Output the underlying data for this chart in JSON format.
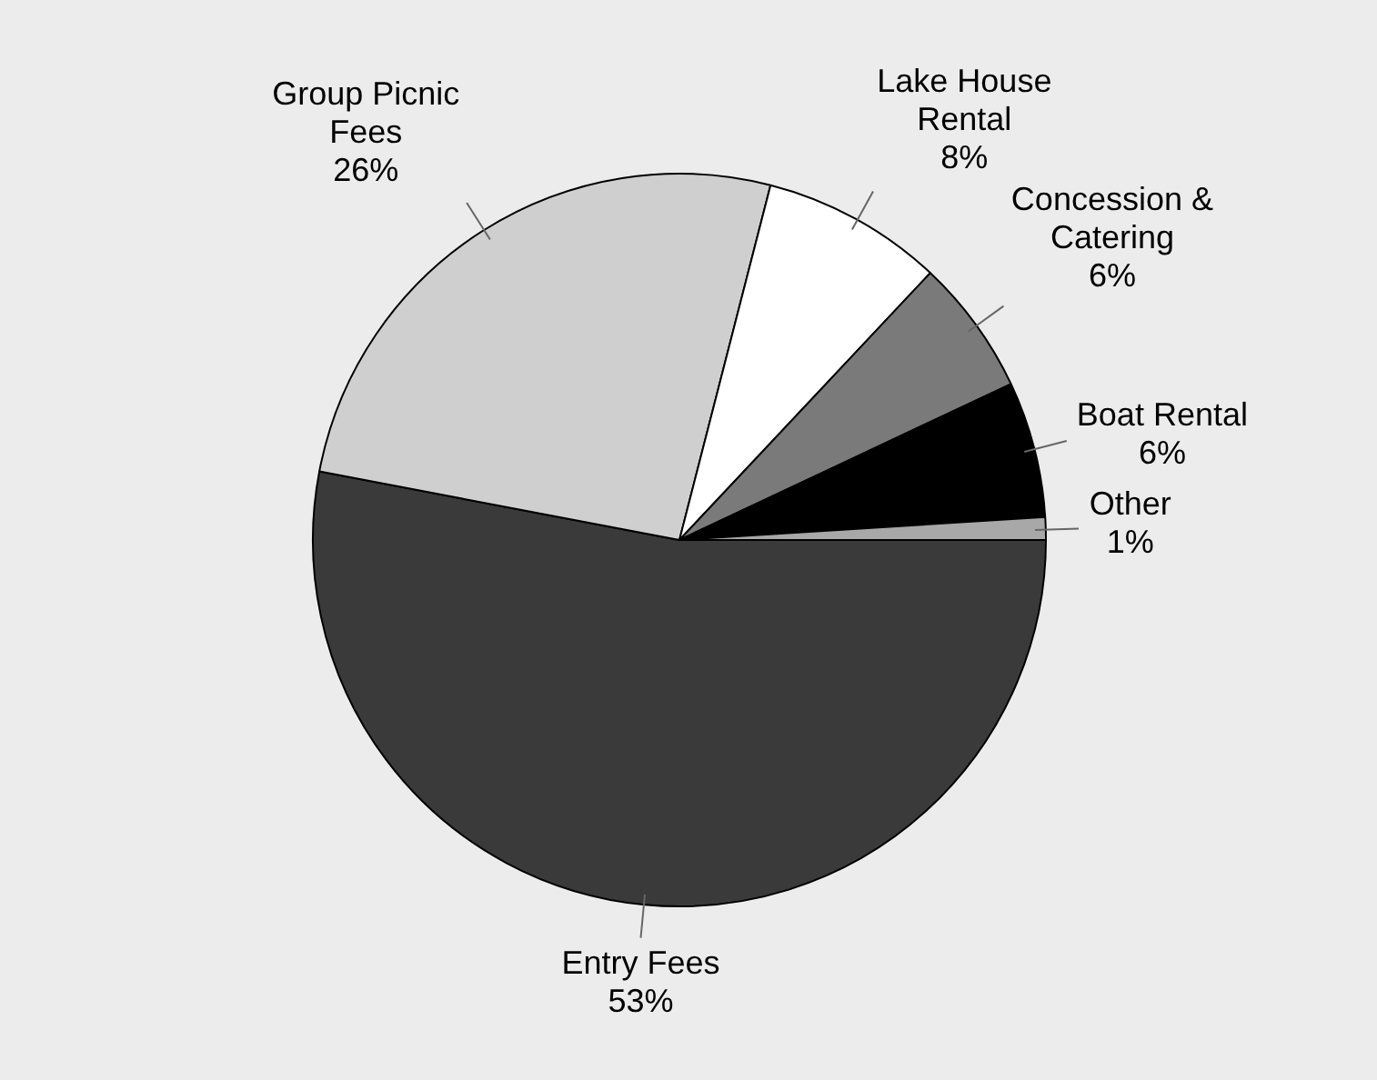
{
  "chart_data": {
    "type": "pie",
    "categories": [
      "Entry Fees",
      "Group Picnic Fees",
      "Lake House Rental",
      "Concession & Catering",
      "Boat Rental",
      "Other"
    ],
    "values": [
      53,
      26,
      8,
      6,
      6,
      1
    ],
    "value_labels": [
      "53%",
      "26%",
      "8%",
      "6%",
      "6%",
      "1%"
    ],
    "colors": [
      "#3a3a3a",
      "#cfcfcf",
      "#ffffff",
      "#7a7a7a",
      "#000000",
      "#a8a8a8"
    ],
    "legend": false
  }
}
